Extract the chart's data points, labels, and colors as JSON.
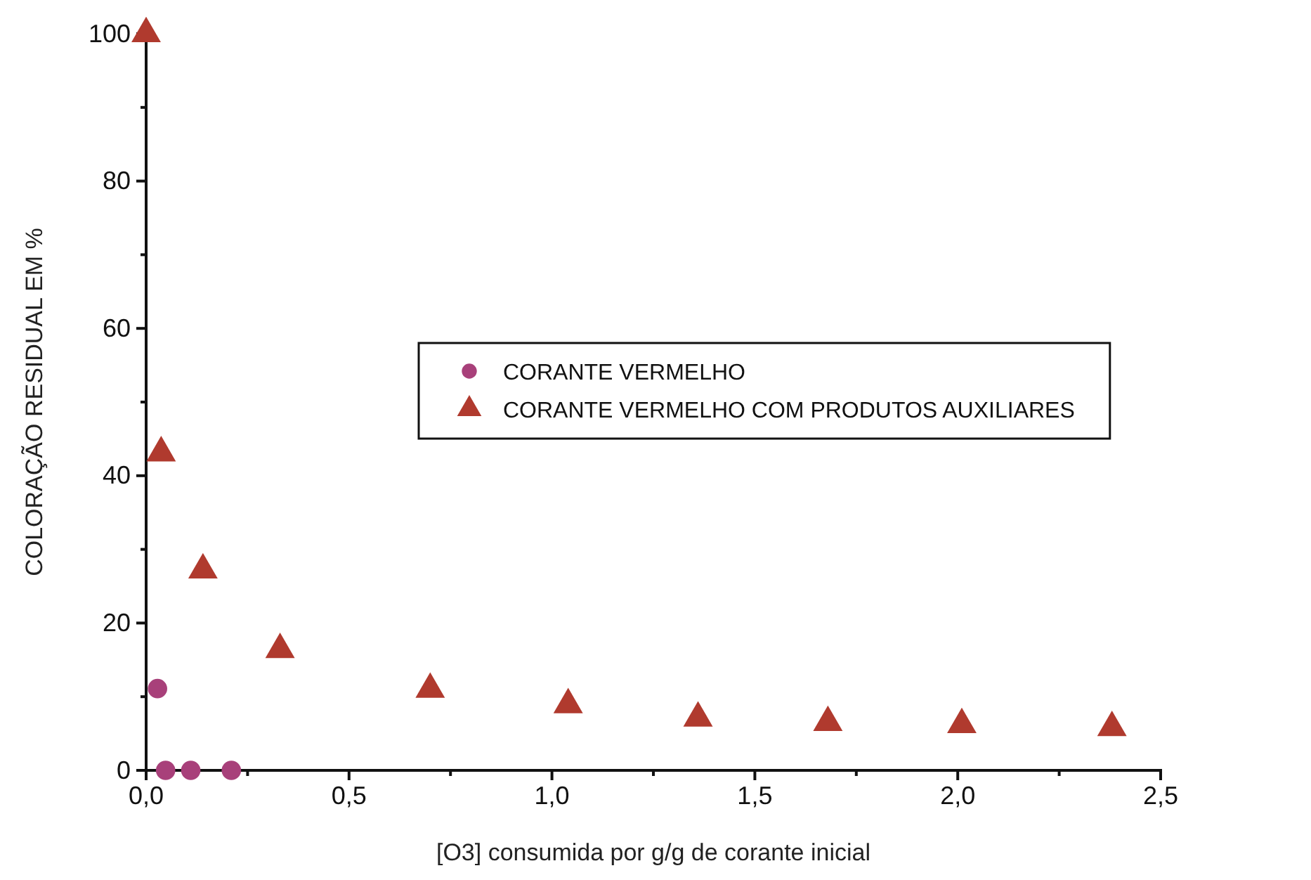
{
  "chart_data": {
    "type": "scatter",
    "xlabel": "[O3] consumida por g/g de corante inicial",
    "ylabel": "COLORAÇÃO RESIDUAL EM %",
    "xlim": [
      0,
      2.5
    ],
    "ylim": [
      0,
      100
    ],
    "xticks": [
      {
        "value": 0,
        "label": "0,0"
      },
      {
        "value": 0.5,
        "label": "0,5"
      },
      {
        "value": 1,
        "label": "1,0"
      },
      {
        "value": 1.5,
        "label": "1,5"
      },
      {
        "value": 2,
        "label": "2,0"
      },
      {
        "value": 2.5,
        "label": "2,5"
      }
    ],
    "yticks": [
      0,
      20,
      40,
      60,
      80,
      100
    ],
    "legend": "right",
    "grid": false,
    "series": [
      {
        "name": "CORANTE VERMELHO",
        "color": "#a8407a",
        "marker": "circle",
        "x": [
          0.028,
          0.048,
          0.11,
          0.21
        ],
        "values": [
          11.1,
          0,
          0,
          0
        ]
      },
      {
        "name": "CORANTE VERMELHO COM PRODUTOS AUXILIARES",
        "color": "#b03a2e",
        "marker": "triangle",
        "x": [
          0,
          0.037,
          0.14,
          0.33,
          0.7,
          1.04,
          1.36,
          1.68,
          2.01,
          2.38
        ],
        "values": [
          100,
          43.1,
          27.2,
          16.4,
          11,
          8.9,
          7.1,
          6.5,
          6.2,
          5.8
        ]
      }
    ]
  }
}
